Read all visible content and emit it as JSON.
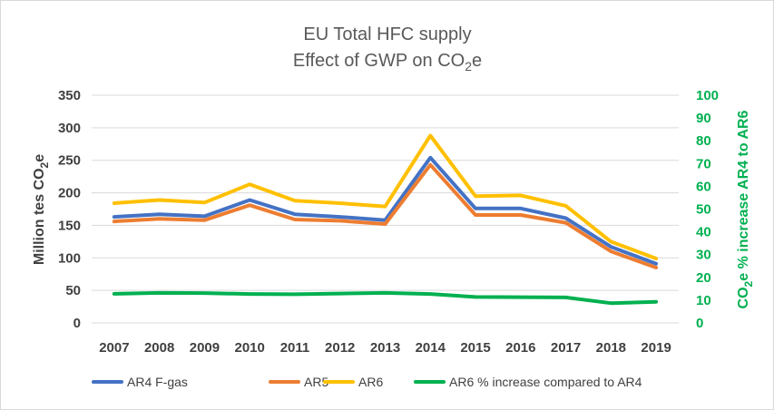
{
  "chart_data": {
    "type": "line",
    "title_line1": "EU Total HFC supply",
    "title_line2_main": "Effect of GWP on CO",
    "title_line2_sub": "2",
    "title_line2_end": "e",
    "ylabel_main": "Million tes CO",
    "ylabel_sub": "2",
    "ylabel_end": "e",
    "ylabel_right_pre": "CO",
    "ylabel_right_sub": "2",
    "ylabel_right_end": "e % increase AR4 to AR6",
    "categories": [
      "2007",
      "2008",
      "2009",
      "2010",
      "2011",
      "2012",
      "2013",
      "2014",
      "2015",
      "2016",
      "2017",
      "2018",
      "2019"
    ],
    "ylim": [
      0,
      350
    ],
    "yticks": [
      "0",
      "50",
      "100",
      "150",
      "200",
      "250",
      "300",
      "350"
    ],
    "y2lim": [
      0,
      100
    ],
    "y2ticks": [
      "0",
      "10",
      "20",
      "30",
      "40",
      "50",
      "60",
      "70",
      "80",
      "90",
      "100"
    ],
    "grid": true,
    "legend_position": "bottom",
    "right_axis_color": "#00b050",
    "series": [
      {
        "name": "AR4 F-gas",
        "color": "#4472c4",
        "axis": "left",
        "values": [
          163,
          167,
          164,
          189,
          167,
          163,
          158,
          254,
          176,
          176,
          161,
          117,
          91
        ]
      },
      {
        "name": "AR5",
        "color": "#ed7d31",
        "axis": "left",
        "values": [
          156,
          160,
          158,
          181,
          159,
          157,
          152,
          243,
          166,
          166,
          154,
          110,
          85
        ]
      },
      {
        "name": "AR6",
        "color": "#ffc000",
        "axis": "left",
        "values": [
          184,
          189,
          185,
          213,
          188,
          184,
          179,
          288,
          195,
          196,
          180,
          125,
          99
        ]
      },
      {
        "name": "AR6 % increase compared to AR4",
        "color": "#00b050",
        "axis": "right",
        "values": [
          12.8,
          13.2,
          13.1,
          12.7,
          12.6,
          12.9,
          13.2,
          12.7,
          11.4,
          11.3,
          11.2,
          8.7,
          9.3
        ]
      }
    ]
  }
}
